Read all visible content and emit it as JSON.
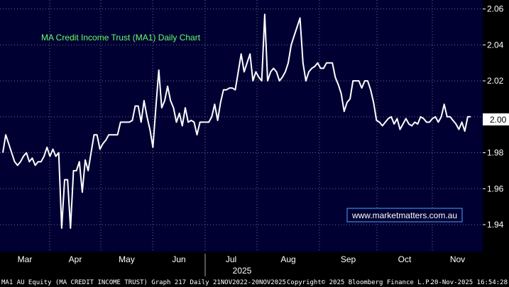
{
  "chart_data": {
    "type": "line",
    "title": "MA Credit Income Trust (MA1) Daily Chart",
    "watermark": "www.marketmatters.com.au",
    "ylim": [
      1.925,
      2.065
    ],
    "y_ticks": [
      "2.06",
      "2.04",
      "2.02",
      "2.00",
      "1.98",
      "1.96",
      "1.94"
    ],
    "x_ticks": [
      "Mar",
      "Apr",
      "May",
      "Jun",
      "Jul",
      "Aug",
      "Sep",
      "Oct",
      "Nov"
    ],
    "year_label": "2025",
    "last_price_label": "2.00",
    "grid": true,
    "colors": {
      "plot_bg": "#000033",
      "line": "#ffffff",
      "title": "#66ff66",
      "watermark_border": "#4aa3ff",
      "watermark_text": "#ffffff"
    },
    "series": [
      {
        "values": [
          1.98,
          1.99,
          1.985,
          1.98,
          1.975,
          1.973,
          1.975,
          1.978,
          1.98,
          1.975,
          1.977,
          1.973,
          1.975,
          1.975,
          1.978,
          1.983,
          1.978,
          1.982,
          1.978,
          1.98,
          1.938,
          1.965,
          1.965,
          1.938,
          1.97,
          1.97,
          1.975,
          1.958,
          1.976,
          1.97,
          1.98,
          1.99,
          1.99,
          1.982,
          1.985,
          1.987,
          1.99,
          1.99,
          1.99,
          1.99,
          1.997,
          1.997,
          1.997,
          1.997,
          1.998,
          2.006,
          2.006,
          1.997,
          2.009,
          2.0,
          1.993,
          1.983,
          2.005,
          2.026,
          2.005,
          2.009,
          2.017,
          2.009,
          2.005,
          1.997,
          2.002,
          1.995,
          2.005,
          1.997,
          1.998,
          1.997,
          1.99,
          1.997,
          1.997,
          1.997,
          1.997,
          2.0,
          2.007,
          1.998,
          2.008,
          2.015,
          2.015,
          2.016,
          2.016,
          2.015,
          2.025,
          2.035,
          2.025,
          2.03,
          2.035,
          2.02,
          2.025,
          2.022,
          2.02,
          2.057,
          2.02,
          2.025,
          2.027,
          2.025,
          2.02,
          2.022,
          2.025,
          2.03,
          2.04,
          2.045,
          2.05,
          2.055,
          2.03,
          2.02,
          2.025,
          2.027,
          2.028,
          2.03,
          2.027,
          2.027,
          2.03,
          2.03,
          2.03,
          2.022,
          2.018,
          2.013,
          2.003,
          2.008,
          2.01,
          2.02,
          2.02,
          2.02,
          2.016,
          2.02,
          2.02,
          2.015,
          2.008,
          1.998,
          1.997,
          1.995,
          1.997,
          1.999,
          2.0,
          1.996,
          1.999,
          1.993,
          1.996,
          1.999,
          1.996,
          1.995,
          1.997,
          1.996,
          2.0,
          1.999,
          1.997,
          1.997,
          1.999,
          2.0,
          1.997,
          2.0,
          2.007,
          2.0,
          2.0,
          1.998,
          1.996,
          1.993,
          1.997,
          1.992,
          2.0,
          2.0
        ]
      }
    ]
  },
  "footer": {
    "left": "MA1 AU Equity (MA CREDIT INCOME TRUST) Graph 217 Daily 21NOV2022-20NOV2025",
    "center": "Copyright© 2025 Bloomberg Finance L.P.",
    "right": "20-Nov-2025 16:54:28"
  }
}
